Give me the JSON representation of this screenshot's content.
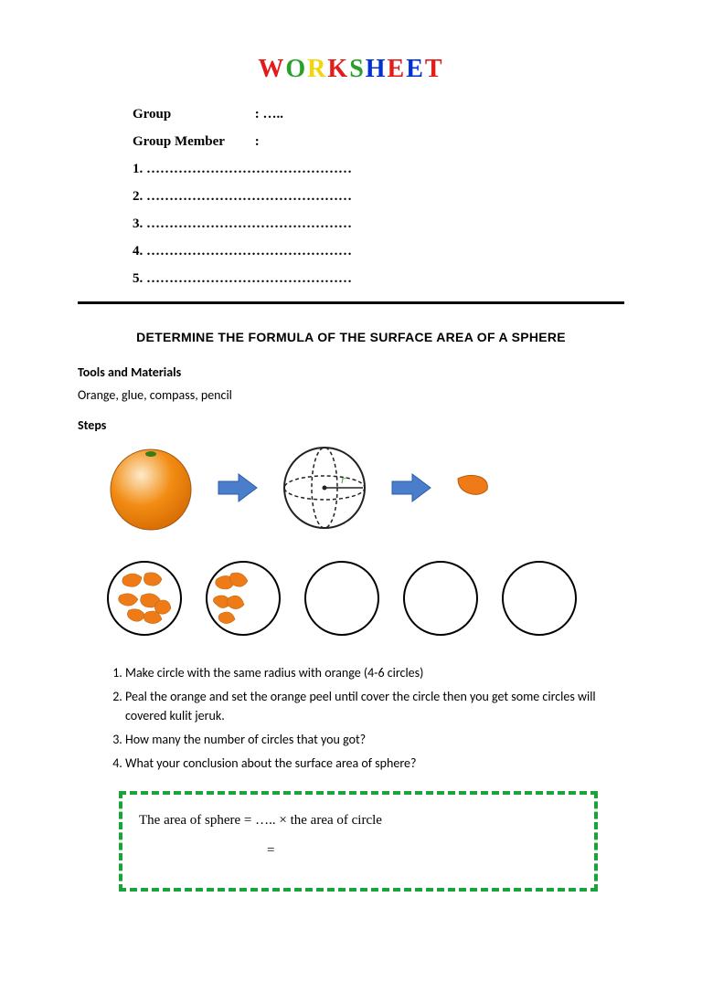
{
  "title_letters": [
    {
      "ch": "W",
      "color": "#e31b1b"
    },
    {
      "ch": "O",
      "color": "#2aa02a"
    },
    {
      "ch": "R",
      "color": "#f2d50a"
    },
    {
      "ch": "K",
      "color": "#e31b1b"
    },
    {
      "ch": "S",
      "color": "#2aa02a"
    },
    {
      "ch": "H",
      "color": "#0030d8"
    },
    {
      "ch": "E",
      "color": "#e31b1b"
    },
    {
      "ch": "E",
      "color": "#0030d8"
    },
    {
      "ch": "T",
      "color": "#e31b1b"
    }
  ],
  "header": {
    "group_label": "Group",
    "group_value": ":  …..",
    "member_label": "Group Member",
    "member_colon": ":",
    "lines": [
      "1.   ………………………………………",
      "2.   ………………………………………",
      "3.   ………………………………………",
      "4.   ………………………………………",
      "5.   ………………………………………"
    ]
  },
  "section_title": "DETERMINE THE FORMULA OF THE SURFACE AREA OF A SPHERE",
  "tools_head": "Tools and Materials",
  "tools_text": "Orange, glue, compass, pencil",
  "steps_head": "Steps",
  "diagram": {
    "orange_fill": "#f28c13",
    "orange_glow": "#fdebcc",
    "orange_stroke": "#a05812",
    "arrow_fill": "#4a7ecb",
    "arrow_stroke": "#2b5ca8",
    "sphere_stroke": "#222222",
    "sphere_letter": "r",
    "circle_stroke": "#000000",
    "peel_fill": "#ee7b17"
  },
  "step_items": [
    "Make  circle with the same radius with orange (4-6 circles)",
    "Peal the orange and set  the orange peel until cover the circle then you get some circles will covered kulit jeruk.",
    "How many the number of circles that you got?",
    "What your conclusion about the surface area of sphere?"
  ],
  "formula": {
    "line1": "The area of sphere = ….. × the area of circle",
    "line2_prefix": "=",
    "border_color": "#1aa33a"
  }
}
